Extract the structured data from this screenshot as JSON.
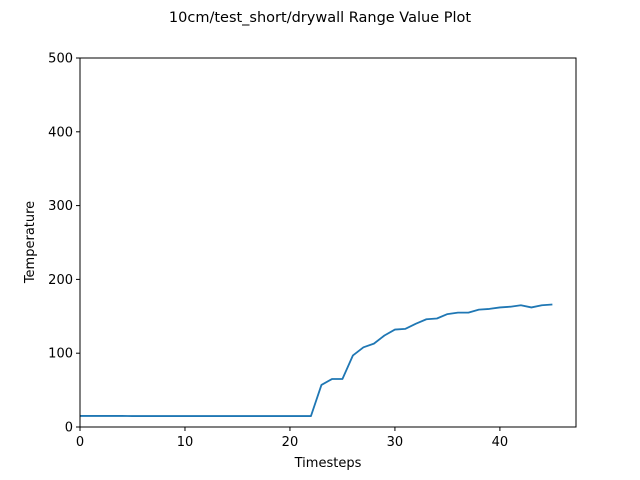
{
  "chart_data": {
    "type": "line",
    "title": "10cm/test_short/drywall Range Value Plot",
    "xlabel": "Timesteps",
    "ylabel": "Temperature",
    "xlim": [
      0,
      47.25
    ],
    "ylim": [
      0,
      500
    ],
    "xticks": [
      0,
      10,
      20,
      30,
      40
    ],
    "yticks": [
      0,
      100,
      200,
      300,
      400,
      500
    ],
    "grid": false,
    "series": [
      {
        "color": "#1f77b4",
        "x": [
          0,
          1,
          2,
          3,
          4,
          5,
          6,
          7,
          8,
          9,
          10,
          11,
          12,
          13,
          14,
          15,
          16,
          17,
          18,
          19,
          20,
          21,
          22,
          23,
          24,
          25,
          26,
          27,
          28,
          29,
          30,
          31,
          32,
          33,
          34,
          35,
          36,
          37,
          38,
          39,
          40,
          41,
          42,
          43,
          44,
          45
        ],
        "values": [
          15,
          15,
          15,
          15,
          15,
          14.8,
          14.8,
          14.8,
          14.8,
          14.8,
          14.8,
          14.8,
          14.8,
          14.8,
          14.8,
          14.8,
          14.8,
          14.8,
          14.8,
          14.8,
          14.8,
          14.8,
          14.8,
          57,
          65,
          65,
          97,
          108,
          113,
          124,
          132,
          133,
          140,
          146,
          147,
          153,
          155,
          155,
          159,
          160,
          162,
          163,
          165,
          162,
          165,
          166
        ]
      }
    ]
  }
}
